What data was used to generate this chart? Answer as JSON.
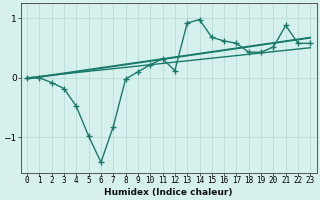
{
  "xlabel": "Humidex (Indice chaleur)",
  "x_values": [
    0,
    1,
    2,
    3,
    4,
    5,
    6,
    7,
    8,
    9,
    10,
    11,
    12,
    13,
    14,
    15,
    16,
    17,
    18,
    19,
    20,
    21,
    22,
    23
  ],
  "main_line": [
    0.0,
    0.0,
    -0.08,
    -0.18,
    -0.48,
    -0.98,
    -1.42,
    -0.82,
    -0.02,
    0.1,
    0.22,
    0.32,
    0.12,
    0.92,
    0.98,
    0.68,
    0.62,
    0.58,
    0.43,
    0.43,
    0.52,
    0.88,
    0.58,
    0.58
  ],
  "reg_line1": [
    -0.02,
    0.01,
    0.04,
    0.07,
    0.1,
    0.13,
    0.16,
    0.19,
    0.22,
    0.25,
    0.28,
    0.31,
    0.34,
    0.37,
    0.4,
    0.43,
    0.46,
    0.49,
    0.52,
    0.55,
    0.58,
    0.61,
    0.64,
    0.67
  ],
  "reg_line2": [
    -0.01,
    0.02,
    0.05,
    0.08,
    0.11,
    0.14,
    0.17,
    0.2,
    0.23,
    0.26,
    0.29,
    0.32,
    0.35,
    0.38,
    0.41,
    0.44,
    0.47,
    0.5,
    0.53,
    0.56,
    0.59,
    0.62,
    0.65,
    0.68
  ],
  "reg_line3": [
    0.0,
    0.022,
    0.044,
    0.066,
    0.088,
    0.11,
    0.132,
    0.154,
    0.176,
    0.198,
    0.22,
    0.242,
    0.264,
    0.286,
    0.308,
    0.33,
    0.352,
    0.374,
    0.396,
    0.418,
    0.44,
    0.462,
    0.484,
    0.506
  ],
  "line_color": "#1a7a6a",
  "bg_color": "#d6f0ee",
  "grid_color": "#b8dcd8",
  "axis_color": "#555555",
  "ylim": [
    -1.6,
    1.25
  ],
  "yticks": [
    -1,
    0,
    1
  ],
  "marker": "+",
  "marker_size": 4,
  "line_width": 1.0,
  "tick_label_fontsize": 5.5,
  "xlabel_fontsize": 6.5
}
